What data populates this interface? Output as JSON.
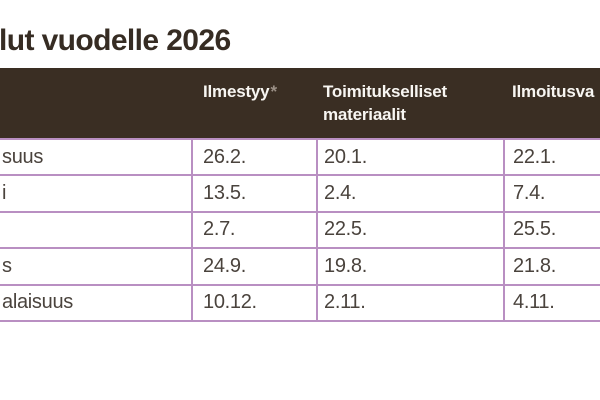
{
  "title": {
    "text": "lut vuodelle 2026"
  },
  "table": {
    "header": {
      "asterisk": "*",
      "columns": [
        {
          "label": ""
        },
        {
          "label": "Ilmestyy"
        },
        {
          "label": "Toimitukselliset materiaalit"
        },
        {
          "label": "Ilmoitusva"
        }
      ]
    },
    "rows": [
      {
        "cells": [
          "suus",
          "26.2.",
          "20.1.",
          "22.1."
        ]
      },
      {
        "cells": [
          "i",
          "13.5.",
          "2.4.",
          "7.4."
        ]
      },
      {
        "cells": [
          "",
          "2.7.",
          "22.5.",
          "25.5."
        ]
      },
      {
        "cells": [
          "s",
          "24.9.",
          "19.8.",
          "21.8."
        ]
      },
      {
        "cells": [
          "alaisuus",
          "10.12.",
          "2.11.",
          "4.11."
        ]
      }
    ]
  },
  "colors": {
    "header_background": "#3a2e23",
    "header_text": "#f8f6f2",
    "asterisk_text": "#9c9187",
    "grid_border": "#b98fc2",
    "cell_text": "#4a433d",
    "title_text": "#362c23",
    "page_background": "#ffffff"
  }
}
